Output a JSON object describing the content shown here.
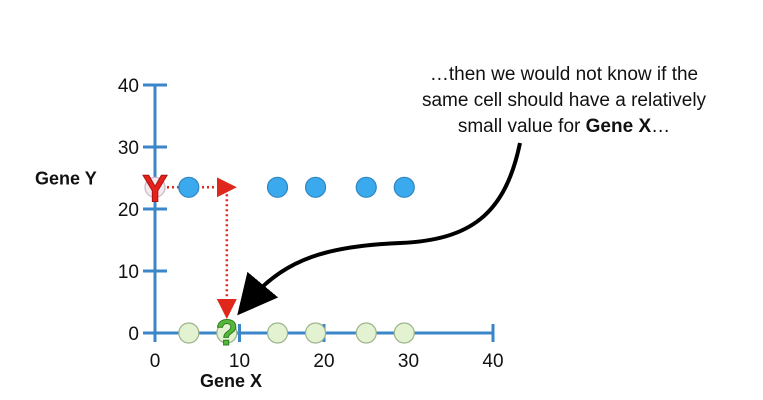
{
  "chart_data": {
    "type": "scatter",
    "xlabel": "Gene X",
    "ylabel": "Gene Y",
    "xlim": [
      0,
      40
    ],
    "ylim": [
      0,
      40
    ],
    "x_ticks": [
      0,
      10,
      20,
      30,
      40
    ],
    "y_ticks": [
      0,
      10,
      20,
      30,
      40
    ],
    "grid": false,
    "colors": {
      "axis": "#3a86c8",
      "y_points": "#3aa9ee",
      "x_points": "#e3f3d2",
      "x_points_stroke": "#9bb28a",
      "y_marker": "#e8201c",
      "question_marker": "#55b83a",
      "guide": "#e0271b"
    },
    "series": [
      {
        "values_axis": "Gene Y",
        "points": [
          {
            "x": 0,
            "y": 23.5
          },
          {
            "x": 4,
            "y": 23.5
          },
          {
            "x": 14.5,
            "y": 23.5
          },
          {
            "x": 19,
            "y": 23.5
          },
          {
            "x": 25,
            "y": 23.5
          },
          {
            "x": 29.5,
            "y": 23.5
          }
        ]
      },
      {
        "values_axis": "Gene X",
        "points": [
          {
            "x": 4,
            "y": 0
          },
          {
            "x": 8.5,
            "y": 0
          },
          {
            "x": 14.5,
            "y": 0
          },
          {
            "x": 19,
            "y": 0
          },
          {
            "x": 25,
            "y": 0
          },
          {
            "x": 29.5,
            "y": 0
          }
        ]
      }
    ],
    "markers": {
      "y_marker": {
        "label": "Y",
        "x": 0,
        "y": 23.5
      },
      "question_marker": {
        "label": "?",
        "x": 8.5,
        "y": 0
      }
    },
    "annotation": {
      "line1": "…then we would not know if the",
      "line2": "same cell should have a relatively",
      "line3_prefix": "small value for ",
      "line3_bold": "Gene X",
      "line3_suffix": "…"
    }
  }
}
